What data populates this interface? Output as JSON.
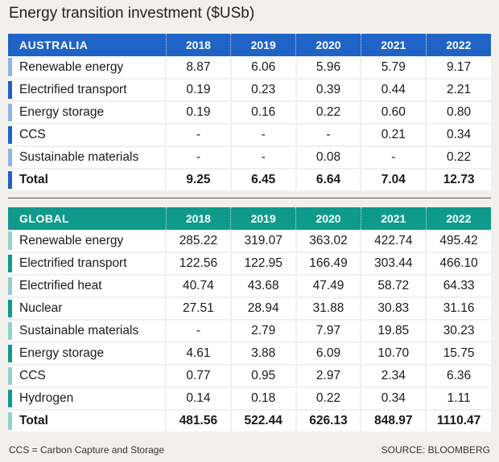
{
  "title": "Energy transition investment ($USb)",
  "footnote": "CCS = Carbon Capture and Storage",
  "source": "SOURCE: BLOOMBERG",
  "colors": {
    "australia_header": "#1f63c6",
    "global_header": "#0f9a8c",
    "au_bar_light": "#8fb4e3",
    "au_bar_dark": "#1f63c6",
    "gl_bar_light": "#8fd3cb",
    "gl_bar_dark": "#0f9a8c"
  },
  "chart_data": [
    {
      "type": "table",
      "header": "AUSTRALIA",
      "columns": [
        "2018",
        "2019",
        "2020",
        "2021",
        "2022"
      ],
      "rows": [
        {
          "label": "Renewable energy",
          "bar": "light",
          "values": [
            "8.87",
            "6.06",
            "5.96",
            "5.79",
            "9.17"
          ]
        },
        {
          "label": "Electrified transport",
          "bar": "dark",
          "values": [
            "0.19",
            "0.23",
            "0.39",
            "0.44",
            "2.21"
          ]
        },
        {
          "label": "Energy storage",
          "bar": "light",
          "values": [
            "0.19",
            "0.16",
            "0.22",
            "0.60",
            "0.80"
          ]
        },
        {
          "label": "CCS",
          "bar": "dark",
          "values": [
            "-",
            "-",
            "-",
            "0.21",
            "0.34"
          ]
        },
        {
          "label": "Sustainable materials",
          "bar": "light",
          "values": [
            "-",
            "-",
            "0.08",
            "-",
            "0.22"
          ]
        },
        {
          "label": "Total",
          "bar": "dark",
          "total": true,
          "values": [
            "9.25",
            "6.45",
            "6.64",
            "7.04",
            "12.73"
          ]
        }
      ]
    },
    {
      "type": "table",
      "header": "GLOBAL",
      "columns": [
        "2018",
        "2019",
        "2020",
        "2021",
        "2022"
      ],
      "rows": [
        {
          "label": "Renewable energy",
          "bar": "light",
          "values": [
            "285.22",
            "319.07",
            "363.02",
            "422.74",
            "495.42"
          ]
        },
        {
          "label": "Electrified transport",
          "bar": "dark",
          "values": [
            "122.56",
            "122.95",
            "166.49",
            "303.44",
            "466.10"
          ]
        },
        {
          "label": "Electrified heat",
          "bar": "light",
          "values": [
            "40.74",
            "43.68",
            "47.49",
            "58.72",
            "64.33"
          ]
        },
        {
          "label": "Nuclear",
          "bar": "dark",
          "values": [
            "27.51",
            "28.94",
            "31.88",
            "30.83",
            "31.16"
          ]
        },
        {
          "label": "Sustainable materials",
          "bar": "light",
          "values": [
            "-",
            "2.79",
            "7.97",
            "19.85",
            "30.23"
          ]
        },
        {
          "label": "Energy storage",
          "bar": "dark",
          "values": [
            "4.61",
            "3.88",
            "6.09",
            "10.70",
            "15.75"
          ]
        },
        {
          "label": "CCS",
          "bar": "light",
          "values": [
            "0.77",
            "0.95",
            "2.97",
            "2.34",
            "6.36"
          ]
        },
        {
          "label": "Hydrogen",
          "bar": "dark",
          "values": [
            "0.14",
            "0.18",
            "0.22",
            "0.34",
            "1.11"
          ]
        },
        {
          "label": "Total",
          "bar": "light",
          "total": true,
          "values": [
            "481.56",
            "522.44",
            "626.13",
            "848.97",
            "1110.47"
          ]
        }
      ]
    }
  ]
}
